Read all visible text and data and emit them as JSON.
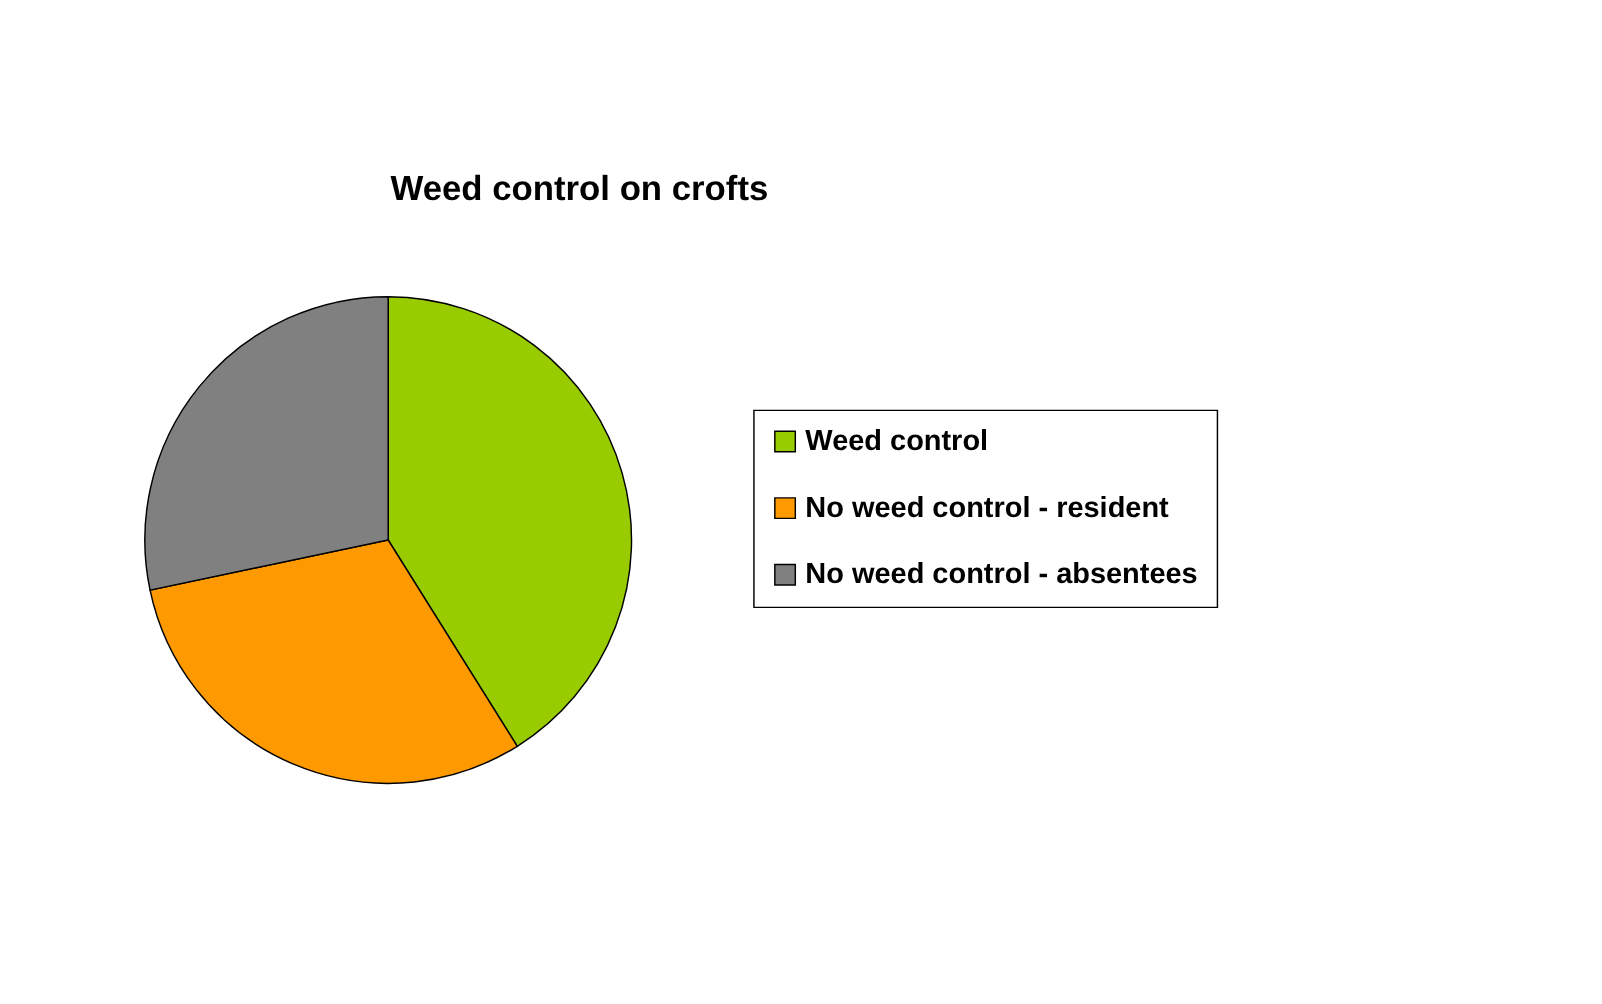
{
  "chart_data": {
    "type": "pie",
    "title": "Weed control on crofts",
    "categories": [
      "Weed control",
      "No weed control - resident",
      "No weed control - absentees"
    ],
    "values": [
      41.1,
      30.6,
      28.3
    ],
    "colors": [
      "#99cc00",
      "#ff9900",
      "#808080"
    ],
    "legend": "right"
  }
}
